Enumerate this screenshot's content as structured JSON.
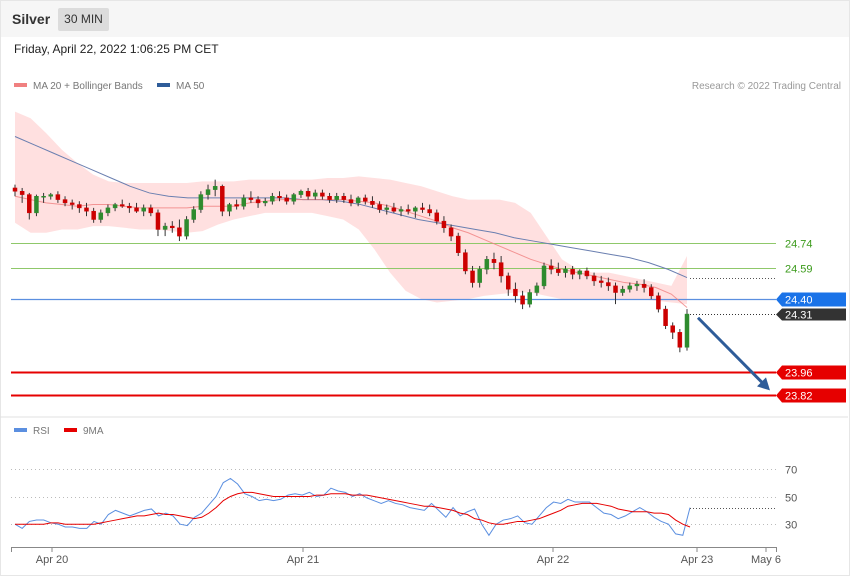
{
  "header": {
    "symbol": "Silver",
    "timeframe": "30 MIN",
    "datetime": "Friday, April 22, 2022 1:06:25 PM CET"
  },
  "legend": {
    "ma20_label": "MA 20 + Bollinger Bands",
    "ma50_label": "MA 50",
    "credit": "Research © 2022 Trading Central"
  },
  "rsi_legend": {
    "rsi_label": "RSI",
    "ma9_label": "9MA"
  },
  "colors": {
    "up": "#2e8b2e",
    "down": "#cc0000",
    "bollinger": "#ffd6d6",
    "ma20": "#f08080",
    "ma50": "#6a7fb0",
    "level_green": "#8fc86a",
    "level_blue": "#5b8fe0",
    "level_red": "#e60000",
    "arrow": "#2e5c99"
  },
  "chart_data": [
    {
      "type": "candlestick",
      "ylim": [
        23.72,
        25.6
      ],
      "x_ticks": [
        "Apr 20",
        "Apr 21",
        "Apr 22",
        "Apr 23",
        "May 6"
      ],
      "candles": [
        [
          25.07,
          25.09,
          25.02,
          25.05
        ],
        [
          25.05,
          25.07,
          24.98,
          25.03
        ],
        [
          25.03,
          25.04,
          24.88,
          24.92
        ],
        [
          24.92,
          25.03,
          24.9,
          25.02
        ],
        [
          25.02,
          25.04,
          24.98,
          25.02
        ],
        [
          25.02,
          25.04,
          25.0,
          25.03
        ],
        [
          25.03,
          25.05,
          24.98,
          25.0
        ],
        [
          25.0,
          25.02,
          24.96,
          24.98
        ],
        [
          24.98,
          25.0,
          24.94,
          24.97
        ],
        [
          24.97,
          24.99,
          24.92,
          24.95
        ],
        [
          24.95,
          24.98,
          24.9,
          24.93
        ],
        [
          24.93,
          24.95,
          24.86,
          24.88
        ],
        [
          24.88,
          24.94,
          24.86,
          24.92
        ],
        [
          24.92,
          24.97,
          24.9,
          24.95
        ],
        [
          24.95,
          24.98,
          24.93,
          24.97
        ],
        [
          24.97,
          25.0,
          24.95,
          24.96
        ],
        [
          24.96,
          24.98,
          24.92,
          24.95
        ],
        [
          24.95,
          24.98,
          24.92,
          24.93
        ],
        [
          24.93,
          24.97,
          24.9,
          24.95
        ],
        [
          24.95,
          24.97,
          24.9,
          24.92
        ],
        [
          24.92,
          24.94,
          24.78,
          24.82
        ],
        [
          24.82,
          24.86,
          24.78,
          24.84
        ],
        [
          24.84,
          24.87,
          24.8,
          24.83
        ],
        [
          24.83,
          24.88,
          24.75,
          24.78
        ],
        [
          24.78,
          24.9,
          24.76,
          24.88
        ],
        [
          24.88,
          24.96,
          24.86,
          24.94
        ],
        [
          24.94,
          25.05,
          24.92,
          25.03
        ],
        [
          25.03,
          25.09,
          25.0,
          25.06
        ],
        [
          25.06,
          25.12,
          25.02,
          25.08
        ],
        [
          25.08,
          25.09,
          24.9,
          24.93
        ],
        [
          24.93,
          24.98,
          24.9,
          24.97
        ],
        [
          24.97,
          25.0,
          24.94,
          24.96
        ],
        [
          24.96,
          25.03,
          24.94,
          25.01
        ],
        [
          25.01,
          25.05,
          24.98,
          25.0
        ],
        [
          25.0,
          25.02,
          24.95,
          24.98
        ],
        [
          24.98,
          25.01,
          24.96,
          24.99
        ],
        [
          24.99,
          25.04,
          24.97,
          25.02
        ],
        [
          25.02,
          25.05,
          24.99,
          25.01
        ],
        [
          25.01,
          25.03,
          24.97,
          24.99
        ],
        [
          24.99,
          25.04,
          24.97,
          25.03
        ],
        [
          25.03,
          25.06,
          25.01,
          25.05
        ],
        [
          25.05,
          25.07,
          25.0,
          25.02
        ],
        [
          25.02,
          25.06,
          25.0,
          25.04
        ],
        [
          25.04,
          25.06,
          25.0,
          25.02
        ],
        [
          25.02,
          25.04,
          24.98,
          25.0
        ],
        [
          25.0,
          25.04,
          24.98,
          25.02
        ],
        [
          25.02,
          25.04,
          24.98,
          25.0
        ],
        [
          25.0,
          25.03,
          24.96,
          24.98
        ],
        [
          24.98,
          25.02,
          24.96,
          25.01
        ],
        [
          25.01,
          25.03,
          24.97,
          24.99
        ],
        [
          24.99,
          25.02,
          24.95,
          24.97
        ],
        [
          24.97,
          24.99,
          24.92,
          24.94
        ],
        [
          24.94,
          24.97,
          24.91,
          24.95
        ],
        [
          24.95,
          24.98,
          24.92,
          24.93
        ],
        [
          24.93,
          24.96,
          24.9,
          24.94
        ],
        [
          24.94,
          24.97,
          24.91,
          24.93
        ],
        [
          24.93,
          24.96,
          24.89,
          24.95
        ],
        [
          24.95,
          24.98,
          24.92,
          24.94
        ],
        [
          24.94,
          24.97,
          24.9,
          24.92
        ],
        [
          24.92,
          24.94,
          24.85,
          24.87
        ],
        [
          24.87,
          24.9,
          24.8,
          24.83
        ],
        [
          24.83,
          24.85,
          24.75,
          24.78
        ],
        [
          24.78,
          24.8,
          24.66,
          24.68
        ],
        [
          24.68,
          24.7,
          24.55,
          24.57
        ],
        [
          24.57,
          24.6,
          24.47,
          24.5
        ],
        [
          24.5,
          24.6,
          24.47,
          24.58
        ],
        [
          24.58,
          24.66,
          24.55,
          24.64
        ],
        [
          24.64,
          24.68,
          24.58,
          24.62
        ],
        [
          24.62,
          24.66,
          24.5,
          24.54
        ],
        [
          24.54,
          24.56,
          24.42,
          24.46
        ],
        [
          24.46,
          24.5,
          24.38,
          24.42
        ],
        [
          24.42,
          24.45,
          24.34,
          24.37
        ],
        [
          24.37,
          24.46,
          24.35,
          24.44
        ],
        [
          24.44,
          24.5,
          24.42,
          24.48
        ],
        [
          24.48,
          24.62,
          24.46,
          24.6
        ],
        [
          24.6,
          24.64,
          24.55,
          24.58
        ],
        [
          24.58,
          24.62,
          24.54,
          24.56
        ],
        [
          24.56,
          24.6,
          24.53,
          24.58
        ],
        [
          24.58,
          24.6,
          24.52,
          24.55
        ],
        [
          24.55,
          24.58,
          24.52,
          24.57
        ],
        [
          24.57,
          24.59,
          24.52,
          24.54
        ],
        [
          24.54,
          24.56,
          24.48,
          24.51
        ],
        [
          24.51,
          24.54,
          24.47,
          24.5
        ],
        [
          24.5,
          24.53,
          24.45,
          24.48
        ],
        [
          24.48,
          24.5,
          24.37,
          24.44
        ],
        [
          24.44,
          24.48,
          24.42,
          24.46
        ],
        [
          24.46,
          24.5,
          24.44,
          24.48
        ],
        [
          24.48,
          24.51,
          24.45,
          24.49
        ],
        [
          24.49,
          24.52,
          24.44,
          24.47
        ],
        [
          24.47,
          24.49,
          24.4,
          24.42
        ],
        [
          24.42,
          24.44,
          24.32,
          24.34
        ],
        [
          24.34,
          24.36,
          24.22,
          24.24
        ],
        [
          24.24,
          24.26,
          24.16,
          24.2
        ],
        [
          24.2,
          24.22,
          24.08,
          24.11
        ],
        [
          24.11,
          24.34,
          24.09,
          24.31
        ]
      ],
      "ma20": [
        25.02,
        25.0,
        24.98,
        24.97,
        24.96,
        24.97,
        24.97,
        24.96,
        24.95,
        24.95,
        24.95,
        24.95,
        24.96,
        24.96,
        24.96,
        24.98,
        24.99,
        25.0,
        25.0,
        25.0,
        25.0,
        25.0,
        24.99,
        24.98,
        24.96,
        24.93,
        24.9,
        24.87,
        24.83,
        24.8,
        24.76,
        24.72,
        24.68,
        24.64,
        24.61,
        24.58,
        24.56,
        24.54,
        24.52,
        24.5,
        24.49,
        24.47,
        24.43,
        24.35
      ],
      "ma50": [
        25.38,
        25.33,
        25.28,
        25.23,
        25.18,
        25.13,
        25.08,
        25.04,
        25.02,
        25.01,
        25.01,
        25.01,
        25.01,
        25.01,
        25.01,
        25.0,
        25.0,
        24.99,
        24.97,
        24.94,
        24.91,
        24.88,
        24.86,
        24.84,
        24.82,
        24.8,
        24.77,
        24.75,
        24.73,
        24.71,
        24.69,
        24.67,
        24.65,
        24.62,
        24.58,
        24.53
      ],
      "bb_upper": [
        25.53,
        25.49,
        25.4,
        25.3,
        25.22,
        25.15,
        25.11,
        25.1,
        25.1,
        25.1,
        25.1,
        25.1,
        25.11,
        25.11,
        25.11,
        25.12,
        25.12,
        25.12,
        25.12,
        25.12,
        25.13,
        25.13,
        25.14,
        25.13,
        25.12,
        25.1,
        25.08,
        25.05,
        25.02,
        25.0,
        25.0,
        25.0,
        24.98,
        24.92,
        24.78,
        24.64,
        24.58,
        24.56,
        24.56,
        24.54,
        24.52,
        24.5,
        24.48,
        24.66
      ],
      "bb_lower": [
        24.86,
        24.8,
        24.8,
        24.82,
        24.82,
        24.84,
        24.84,
        24.83,
        24.82,
        24.82,
        24.81,
        24.8,
        24.81,
        24.85,
        24.88,
        24.9,
        24.92,
        24.92,
        24.92,
        24.92,
        24.9,
        24.88,
        24.82,
        24.7,
        24.56,
        24.45,
        24.4,
        24.38,
        24.39,
        24.4,
        24.42,
        24.43,
        24.44,
        24.44,
        24.42,
        24.4,
        24.4,
        24.4,
        24.4,
        24.4,
        24.4,
        24.39,
        24.38,
        24.37
      ],
      "levels": [
        {
          "value": 24.74,
          "label": "24.74",
          "kind": "resistance"
        },
        {
          "value": 24.59,
          "label": "24.59",
          "kind": "resistance"
        },
        {
          "value": 24.4,
          "label": "24.40",
          "kind": "pivot"
        },
        {
          "value": 24.31,
          "label": "24.31",
          "kind": "last"
        },
        {
          "value": 23.96,
          "label": "23.96",
          "kind": "support"
        },
        {
          "value": 23.82,
          "label": "23.82",
          "kind": "support"
        }
      ],
      "forecast_arrow": {
        "from": 24.3,
        "to": 23.85
      }
    },
    {
      "type": "line",
      "ylim": [
        15,
        85
      ],
      "y_ticks": [
        "70",
        "50",
        "30"
      ],
      "rsi": [
        30,
        27,
        32,
        33,
        33,
        31,
        30,
        28,
        28,
        27,
        27,
        32,
        30,
        37,
        40,
        38,
        36,
        38,
        40,
        41,
        36,
        38,
        36,
        30,
        29,
        35,
        38,
        44,
        50,
        60,
        63,
        59,
        52,
        50,
        47,
        48,
        47,
        48,
        51,
        52,
        51,
        53,
        50,
        51,
        56,
        54,
        53,
        50,
        52,
        49,
        47,
        45,
        47,
        45,
        44,
        42,
        41,
        40,
        45,
        40,
        35,
        42,
        36,
        39,
        41,
        30,
        22,
        30,
        33,
        34,
        36,
        31,
        30,
        36,
        42,
        46,
        45,
        48,
        46,
        46,
        46,
        42,
        38,
        37,
        34,
        36,
        39,
        42,
        39,
        35,
        32,
        30,
        23,
        22,
        42
      ],
      "ma9": [
        30,
        30,
        30,
        30,
        30,
        31,
        31,
        30,
        30,
        30,
        30,
        30,
        31,
        32,
        33,
        34,
        35,
        36,
        36,
        37,
        38,
        37,
        37,
        36,
        35,
        34,
        35,
        38,
        42,
        47,
        50,
        52,
        53,
        53,
        52,
        51,
        50,
        50,
        50,
        50,
        50,
        50,
        51,
        51,
        52,
        52,
        52,
        51,
        51,
        51,
        50,
        49,
        48,
        47,
        46,
        45,
        44,
        43,
        43,
        42,
        41,
        40,
        38,
        37,
        34,
        33,
        31,
        30,
        30,
        31,
        32,
        32,
        33,
        34,
        36,
        38,
        40,
        43,
        44,
        45,
        45,
        45,
        44,
        43,
        41,
        40,
        39,
        39,
        39,
        38,
        38,
        37,
        33,
        30,
        28
      ]
    }
  ]
}
